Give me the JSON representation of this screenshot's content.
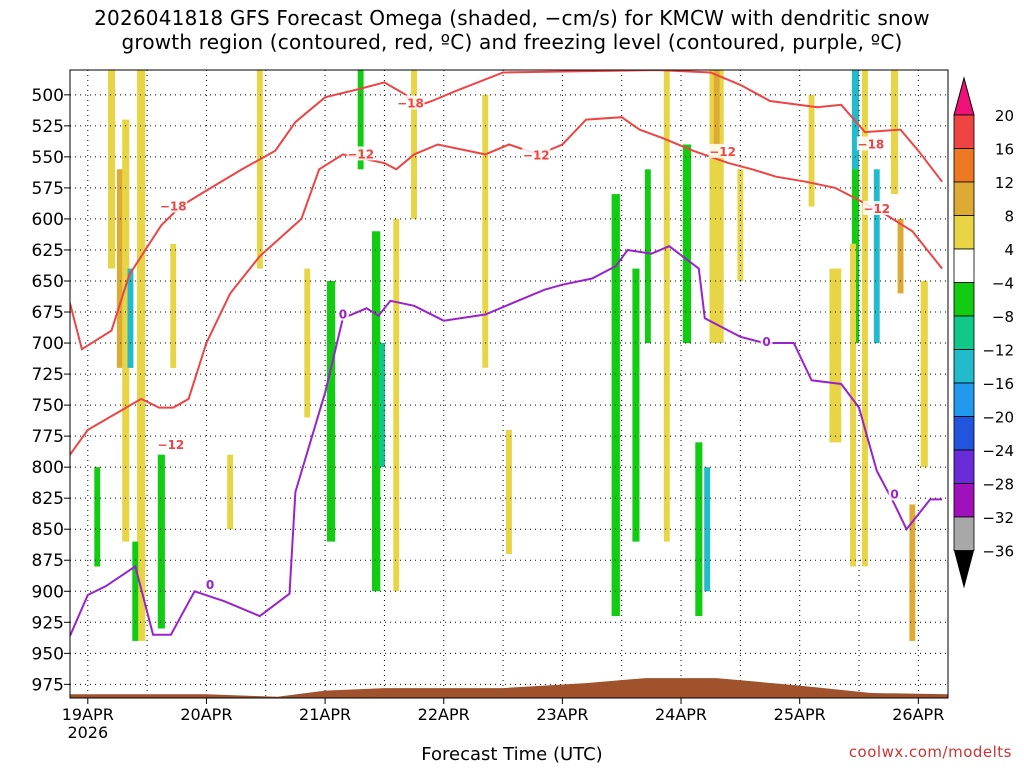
{
  "title_lines": [
    "2026041818 GFS Forecast Omega (shaded, −cm/s) for KMCW with dendritic snow",
    "growth region (contoured, red, ºC) and freezing level (contoured, purple, ºC)"
  ],
  "credit": "coolwx.com/modelts",
  "chart_data": {
    "type": "heatmap",
    "xlabel": "Forecast Time (UTC)",
    "ylabel": "",
    "x_ticks": [
      "19APR",
      "20APR",
      "21APR",
      "22APR",
      "23APR",
      "24APR",
      "25APR",
      "26APR"
    ],
    "x_year": "2026",
    "x_range_days": [
      18.85,
      26.25
    ],
    "y_ticks": [
      500,
      525,
      550,
      575,
      600,
      625,
      650,
      675,
      700,
      725,
      750,
      775,
      800,
      825,
      850,
      875,
      900,
      925,
      950,
      975
    ],
    "y_range_hpa": [
      480,
      986
    ],
    "grid": true,
    "colorbar": {
      "labels": [
        "20",
        "16",
        "12",
        "8",
        "4",
        "−4",
        "−8",
        "−12",
        "−16",
        "−20",
        "−24",
        "−28",
        "−32",
        "−36"
      ],
      "colors": [
        "#ee4444",
        "#ee7722",
        "#ddaa33",
        "#e8d545",
        "#ffffff",
        "#11cc11",
        "#11c888",
        "#22bbcc",
        "#2299ee",
        "#2255dd",
        "#6a2bd8",
        "#a011bb",
        "#a8a8a8"
      ],
      "top_arrow_color": "#ee1177",
      "bottom_arrow_color": "#000000"
    },
    "omega_cells": [
      {
        "t": 19.2,
        "w": 0.06,
        "p1": 480,
        "p2": 640,
        "v": 5
      },
      {
        "t": 19.27,
        "w": 0.05,
        "p1": 560,
        "p2": 720,
        "v": 10
      },
      {
        "t": 19.32,
        "w": 0.06,
        "p1": 520,
        "p2": 860,
        "v": 5
      },
      {
        "t": 19.36,
        "w": 0.05,
        "p1": 640,
        "p2": 720,
        "v": -14
      },
      {
        "t": 19.45,
        "w": 0.07,
        "p1": 480,
        "p2": 940,
        "v": 5
      },
      {
        "t": 19.4,
        "w": 0.05,
        "p1": 860,
        "p2": 940,
        "v": -6
      },
      {
        "t": 19.62,
        "w": 0.06,
        "p1": 790,
        "p2": 930,
        "v": -6
      },
      {
        "t": 19.72,
        "w": 0.05,
        "p1": 620,
        "p2": 720,
        "v": 5
      },
      {
        "t": 19.08,
        "w": 0.05,
        "p1": 800,
        "p2": 880,
        "v": -6
      },
      {
        "t": 20.2,
        "w": 0.05,
        "p1": 790,
        "p2": 850,
        "v": 5
      },
      {
        "t": 20.45,
        "w": 0.05,
        "p1": 480,
        "p2": 640,
        "v": 5
      },
      {
        "t": 20.85,
        "w": 0.05,
        "p1": 640,
        "p2": 760,
        "v": 5
      },
      {
        "t": 21.05,
        "w": 0.07,
        "p1": 650,
        "p2": 860,
        "v": -6
      },
      {
        "t": 21.3,
        "w": 0.05,
        "p1": 480,
        "p2": 560,
        "v": -6
      },
      {
        "t": 21.43,
        "w": 0.07,
        "p1": 610,
        "p2": 900,
        "v": -6
      },
      {
        "t": 21.48,
        "w": 0.05,
        "p1": 700,
        "p2": 800,
        "v": -10
      },
      {
        "t": 21.6,
        "w": 0.05,
        "p1": 600,
        "p2": 900,
        "v": 5
      },
      {
        "t": 21.75,
        "w": 0.05,
        "p1": 480,
        "p2": 600,
        "v": 5
      },
      {
        "t": 22.35,
        "w": 0.05,
        "p1": 500,
        "p2": 720,
        "v": 5
      },
      {
        "t": 22.55,
        "w": 0.05,
        "p1": 770,
        "p2": 870,
        "v": 5
      },
      {
        "t": 23.45,
        "w": 0.07,
        "p1": 580,
        "p2": 920,
        "v": -6
      },
      {
        "t": 23.62,
        "w": 0.06,
        "p1": 640,
        "p2": 860,
        "v": -6
      },
      {
        "t": 23.72,
        "w": 0.05,
        "p1": 560,
        "p2": 700,
        "v": -6
      },
      {
        "t": 23.88,
        "w": 0.05,
        "p1": 480,
        "p2": 860,
        "v": 5
      },
      {
        "t": 24.05,
        "w": 0.07,
        "p1": 540,
        "p2": 700,
        "v": -6
      },
      {
        "t": 24.15,
        "w": 0.06,
        "p1": 780,
        "p2": 920,
        "v": -6
      },
      {
        "t": 24.22,
        "w": 0.05,
        "p1": 800,
        "p2": 900,
        "v": -12
      },
      {
        "t": 24.3,
        "w": 0.12,
        "p1": 480,
        "p2": 700,
        "v": 5
      },
      {
        "t": 24.3,
        "w": 0.05,
        "p1": 480,
        "p2": 540,
        "v": 10
      },
      {
        "t": 24.5,
        "w": 0.05,
        "p1": 560,
        "p2": 650,
        "v": 5
      },
      {
        "t": 25.1,
        "w": 0.05,
        "p1": 500,
        "p2": 590,
        "v": 5
      },
      {
        "t": 25.3,
        "w": 0.1,
        "p1": 640,
        "p2": 780,
        "v": 5
      },
      {
        "t": 25.47,
        "w": 0.06,
        "p1": 480,
        "p2": 560,
        "v": -14
      },
      {
        "t": 25.47,
        "w": 0.06,
        "p1": 560,
        "p2": 700,
        "v": -6
      },
      {
        "t": 25.45,
        "w": 0.05,
        "p1": 620,
        "p2": 880,
        "v": 5
      },
      {
        "t": 25.55,
        "w": 0.05,
        "p1": 480,
        "p2": 880,
        "v": 5
      },
      {
        "t": 25.65,
        "w": 0.05,
        "p1": 560,
        "p2": 700,
        "v": -12
      },
      {
        "t": 25.8,
        "w": 0.06,
        "p1": 480,
        "p2": 580,
        "v": 5
      },
      {
        "t": 25.85,
        "w": 0.05,
        "p1": 600,
        "p2": 660,
        "v": 10
      },
      {
        "t": 25.95,
        "w": 0.05,
        "p1": 830,
        "p2": 940,
        "v": 10
      },
      {
        "t": 26.05,
        "w": 0.06,
        "p1": 650,
        "p2": 800,
        "v": 5
      }
    ],
    "contours": [
      {
        "name": "−18",
        "color": "#ee4444",
        "labels": [
          {
            "text": "−18",
            "t": 19.72,
            "p": 590
          },
          {
            "text": "−18",
            "t": 21.72,
            "p": 507
          },
          {
            "text": "−18",
            "t": 25.6,
            "p": 540
          }
        ],
        "points": [
          [
            18.85,
            668
          ],
          [
            18.95,
            705
          ],
          [
            19.2,
            690
          ],
          [
            19.35,
            645
          ],
          [
            19.62,
            605
          ],
          [
            19.78,
            590
          ],
          [
            19.95,
            580
          ],
          [
            20.3,
            560
          ],
          [
            20.58,
            545
          ],
          [
            20.75,
            522
          ],
          [
            21.0,
            502
          ],
          [
            21.3,
            495
          ],
          [
            21.5,
            490
          ],
          [
            21.68,
            500
          ],
          [
            21.75,
            510
          ],
          [
            21.9,
            505
          ],
          [
            22.1,
            497
          ],
          [
            22.5,
            482
          ],
          [
            23.8,
            480
          ],
          [
            24.25,
            482
          ],
          [
            24.5,
            492
          ],
          [
            24.75,
            505
          ],
          [
            25.15,
            510
          ],
          [
            25.35,
            508
          ],
          [
            25.55,
            530
          ],
          [
            25.85,
            528
          ],
          [
            26.0,
            545
          ],
          [
            26.2,
            570
          ]
        ]
      },
      {
        "name": "−12",
        "color": "#ee4444",
        "labels": [
          {
            "text": "−12",
            "t": 19.7,
            "p": 782
          },
          {
            "text": "−12",
            "t": 21.3,
            "p": 548
          },
          {
            "text": "−12",
            "t": 22.78,
            "p": 549
          },
          {
            "text": "−12",
            "t": 24.35,
            "p": 546
          },
          {
            "text": "−12",
            "t": 25.65,
            "p": 592
          }
        ],
        "points": [
          [
            18.85,
            790
          ],
          [
            19.0,
            770
          ],
          [
            19.45,
            745
          ],
          [
            19.6,
            752
          ],
          [
            19.72,
            752
          ],
          [
            19.85,
            745
          ],
          [
            20.0,
            700
          ],
          [
            20.2,
            660
          ],
          [
            20.45,
            630
          ],
          [
            20.8,
            600
          ],
          [
            20.95,
            560
          ],
          [
            21.15,
            548
          ],
          [
            21.5,
            555
          ],
          [
            21.6,
            560
          ],
          [
            21.75,
            548
          ],
          [
            21.95,
            540
          ],
          [
            22.35,
            548
          ],
          [
            22.55,
            540
          ],
          [
            22.8,
            548
          ],
          [
            23.0,
            540
          ],
          [
            23.2,
            520
          ],
          [
            23.5,
            518
          ],
          [
            23.65,
            528
          ],
          [
            23.85,
            535
          ],
          [
            24.1,
            545
          ],
          [
            24.4,
            555
          ],
          [
            24.6,
            560
          ],
          [
            24.8,
            566
          ],
          [
            25.05,
            570
          ],
          [
            25.3,
            575
          ],
          [
            25.5,
            585
          ],
          [
            25.7,
            595
          ],
          [
            25.95,
            610
          ],
          [
            26.2,
            640
          ]
        ]
      },
      {
        "name": "0",
        "color": "#9922cc",
        "labels": [
          {
            "text": "0",
            "t": 20.03,
            "p": 895
          },
          {
            "text": "0",
            "t": 21.15,
            "p": 677
          },
          {
            "text": "0",
            "t": 24.72,
            "p": 699
          },
          {
            "text": "0",
            "t": 25.8,
            "p": 822
          }
        ],
        "points": [
          [
            18.85,
            936
          ],
          [
            19.0,
            903
          ],
          [
            19.15,
            896
          ],
          [
            19.4,
            880
          ],
          [
            19.55,
            935
          ],
          [
            19.7,
            935
          ],
          [
            19.9,
            900
          ],
          [
            20.15,
            908
          ],
          [
            20.45,
            920
          ],
          [
            20.7,
            902
          ],
          [
            20.75,
            820
          ],
          [
            21.0,
            740
          ],
          [
            21.15,
            680
          ],
          [
            21.35,
            672
          ],
          [
            21.45,
            678
          ],
          [
            21.55,
            666
          ],
          [
            21.75,
            670
          ],
          [
            22.0,
            682
          ],
          [
            22.35,
            677
          ],
          [
            22.6,
            667
          ],
          [
            22.85,
            657
          ],
          [
            23.0,
            653
          ],
          [
            23.25,
            648
          ],
          [
            23.45,
            638
          ],
          [
            23.55,
            625
          ],
          [
            23.75,
            628
          ],
          [
            23.9,
            622
          ],
          [
            24.15,
            640
          ],
          [
            24.2,
            680
          ],
          [
            24.4,
            690
          ],
          [
            24.5,
            695
          ],
          [
            24.7,
            700
          ],
          [
            24.95,
            700
          ],
          [
            25.1,
            730
          ],
          [
            25.35,
            733
          ],
          [
            25.5,
            752
          ],
          [
            25.65,
            803
          ],
          [
            25.8,
            830
          ],
          [
            25.9,
            850
          ],
          [
            26.1,
            826
          ],
          [
            26.2,
            826
          ]
        ]
      }
    ]
  }
}
